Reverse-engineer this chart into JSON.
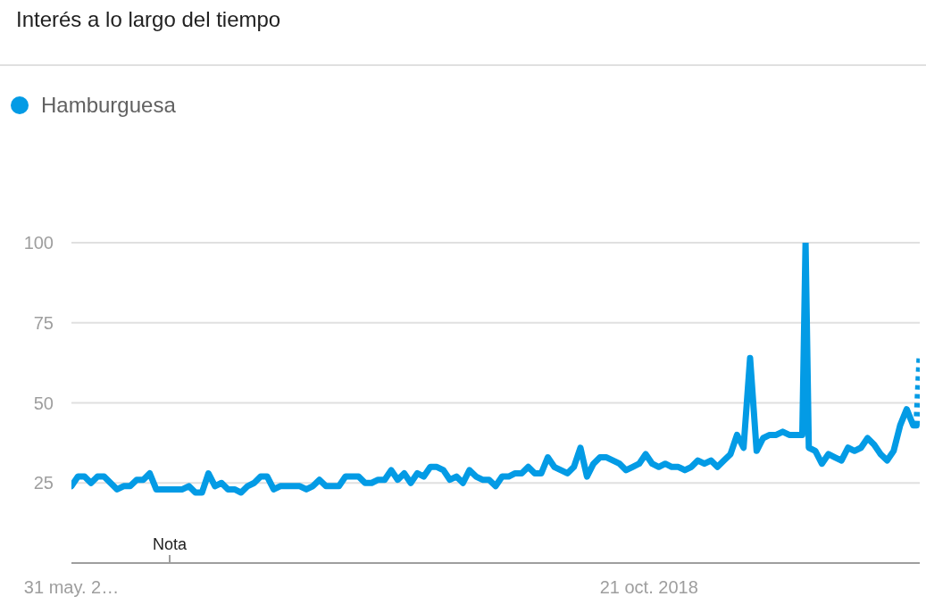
{
  "chart_data": {
    "type": "line",
    "title": "Interés a lo largo del tiempo",
    "legend": "top left",
    "grid": "y",
    "marker": "none",
    "xlim": [
      "2015-05-31",
      "2020-05-24"
    ],
    "xticks": [
      {
        "value": "2015-05-31",
        "label": "31 may. 2…"
      },
      {
        "value": "2018-10-21",
        "label": "21 oct. 2018"
      }
    ],
    "ylim": [
      0,
      100
    ],
    "yticks": [
      25,
      50,
      75,
      100
    ],
    "annotations": [
      "Nota"
    ],
    "series": [
      {
        "name": "Hamburguesa",
        "color": "#039be5",
        "line_style": "solid",
        "x": [
          "2015-05-31",
          "2015-06-14",
          "2015-06-28",
          "2015-07-12",
          "2015-07-26",
          "2015-08-09",
          "2015-08-23",
          "2015-09-06",
          "2015-09-20",
          "2015-10-04",
          "2015-10-18",
          "2015-11-01",
          "2015-11-15",
          "2015-11-29",
          "2015-12-13",
          "2015-12-27",
          "2016-01-10",
          "2016-01-24",
          "2016-02-07",
          "2016-02-21",
          "2016-03-06",
          "2016-03-20",
          "2016-04-03",
          "2016-04-17",
          "2016-05-01",
          "2016-05-15",
          "2016-05-29",
          "2016-06-12",
          "2016-06-26",
          "2016-07-10",
          "2016-07-24",
          "2016-08-07",
          "2016-08-21",
          "2016-09-04",
          "2016-09-18",
          "2016-10-02",
          "2016-10-16",
          "2016-10-30",
          "2016-11-13",
          "2016-11-27",
          "2016-12-11",
          "2016-12-25",
          "2017-01-08",
          "2017-01-22",
          "2017-02-05",
          "2017-02-19",
          "2017-03-05",
          "2017-03-19",
          "2017-04-02",
          "2017-04-16",
          "2017-04-30",
          "2017-05-14",
          "2017-05-28",
          "2017-06-11",
          "2017-06-25",
          "2017-07-09",
          "2017-07-23",
          "2017-08-06",
          "2017-08-20",
          "2017-09-03",
          "2017-09-17",
          "2017-10-01",
          "2017-10-15",
          "2017-10-29",
          "2017-11-12",
          "2017-11-26",
          "2017-12-10",
          "2017-12-24",
          "2018-01-07",
          "2018-01-21",
          "2018-02-04",
          "2018-02-18",
          "2018-03-04",
          "2018-03-18",
          "2018-04-01",
          "2018-04-15",
          "2018-04-29",
          "2018-05-13",
          "2018-05-27",
          "2018-06-10",
          "2018-06-24",
          "2018-07-08",
          "2018-07-22",
          "2018-08-05",
          "2018-08-19",
          "2018-09-02",
          "2018-09-16",
          "2018-09-30",
          "2018-10-14",
          "2018-10-28",
          "2018-11-11",
          "2018-11-25",
          "2018-12-09",
          "2018-12-23",
          "2019-01-06",
          "2019-01-20",
          "2019-02-03",
          "2019-02-17",
          "2019-03-03",
          "2019-03-17",
          "2019-03-31",
          "2019-04-14",
          "2019-04-28",
          "2019-05-12",
          "2019-05-26",
          "2019-06-09",
          "2019-06-23",
          "2019-07-07",
          "2019-07-21",
          "2019-08-04",
          "2019-08-18",
          "2019-09-01",
          "2019-09-15",
          "2019-09-22",
          "2019-09-29",
          "2019-10-13",
          "2019-10-27",
          "2019-11-10",
          "2019-11-24",
          "2019-12-08",
          "2019-12-22",
          "2020-01-05",
          "2020-01-19",
          "2020-02-02",
          "2020-02-16",
          "2020-03-01",
          "2020-03-15",
          "2020-03-29",
          "2020-04-12",
          "2020-04-26",
          "2020-05-10",
          "2020-05-17"
        ],
        "values": [
          24,
          27,
          27,
          25,
          27,
          27,
          25,
          23,
          24,
          24,
          26,
          26,
          28,
          23,
          23,
          23,
          23,
          23,
          24,
          22,
          22,
          28,
          24,
          25,
          23,
          23,
          22,
          24,
          25,
          27,
          27,
          23,
          24,
          24,
          24,
          24,
          23,
          24,
          26,
          24,
          24,
          24,
          27,
          27,
          27,
          25,
          25,
          26,
          26,
          29,
          26,
          28,
          25,
          28,
          27,
          30,
          30,
          29,
          26,
          27,
          25,
          29,
          27,
          26,
          26,
          24,
          27,
          27,
          28,
          28,
          30,
          28,
          28,
          33,
          30,
          29,
          28,
          30,
          36,
          27,
          31,
          33,
          33,
          32,
          31,
          29,
          30,
          31,
          34,
          31,
          30,
          31,
          30,
          30,
          29,
          30,
          32,
          31,
          32,
          30,
          32,
          34,
          40,
          36,
          64,
          35,
          39,
          40,
          40,
          41,
          40,
          40,
          40,
          100,
          36,
          35,
          31,
          34,
          33,
          32,
          36,
          35,
          36,
          39,
          37,
          34,
          32,
          35,
          43,
          48,
          43,
          43
        ]
      },
      {
        "color": "#039be5",
        "line_style": "dotted",
        "x": [
          "2020-05-17",
          "2020-05-24"
        ],
        "values": [
          43,
          65
        ]
      }
    ]
  }
}
